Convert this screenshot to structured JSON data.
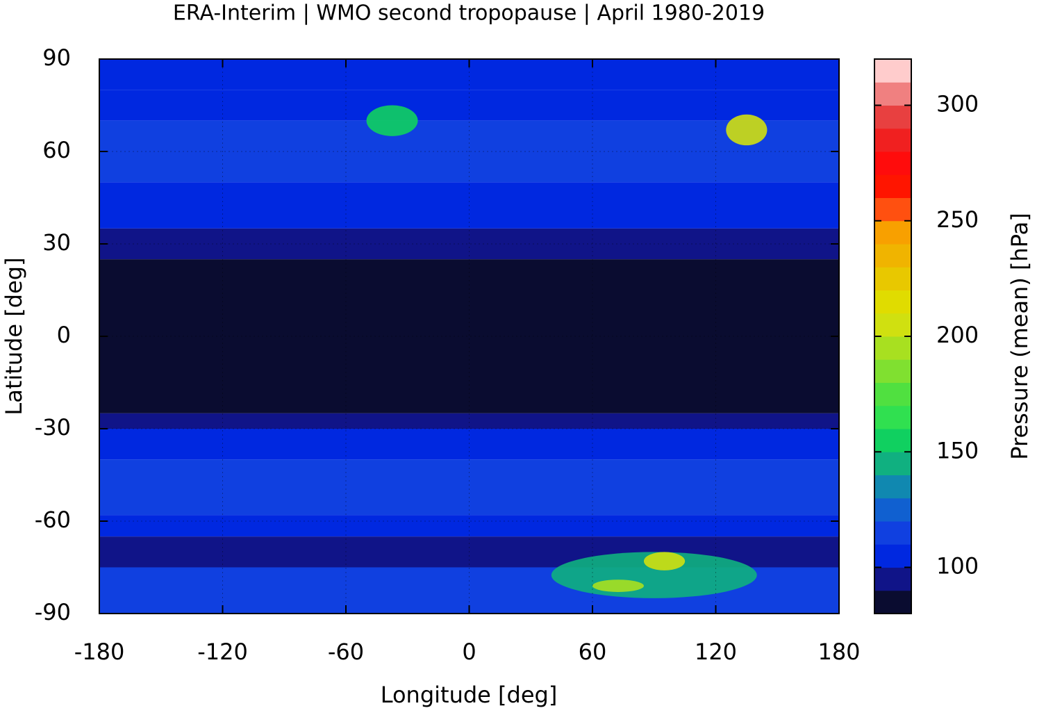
{
  "chart_data": {
    "type": "heatmap",
    "title": "ERA-Interim | WMO second tropopause | April 1980-2019",
    "x_label": "Longitude [deg]",
    "y_label": "Latitude [deg]",
    "xlim": [
      -180,
      180
    ],
    "xticks": [
      -180,
      -120,
      -60,
      0,
      60,
      120,
      180
    ],
    "ylim": [
      -90,
      90
    ],
    "yticks": [
      -90,
      -60,
      -30,
      0,
      30,
      60,
      90
    ],
    "grid": true,
    "zonal_bands": {
      "lat_edges": [
        90,
        80,
        70,
        50,
        35,
        25,
        -25,
        -30,
        -40,
        -58,
        -65,
        -75,
        -90
      ],
      "values": [
        105,
        100,
        110,
        100,
        92,
        85,
        92,
        105,
        112,
        105,
        95,
        115
      ]
    },
    "patches": [
      {
        "lon": [
          40,
          140
        ],
        "lat": [
          -85,
          -70
        ],
        "value": 140
      },
      {
        "lon": [
          85,
          105
        ],
        "lat": [
          -76,
          -70
        ],
        "value": 205
      },
      {
        "lon": [
          60,
          85
        ],
        "lat": [
          -83,
          -79
        ],
        "value": 195
      },
      {
        "lon": [
          125,
          145
        ],
        "lat": [
          62,
          72
        ],
        "value": 200
      },
      {
        "lon": [
          -50,
          -25
        ],
        "lat": [
          65,
          75
        ],
        "value": 150
      }
    ],
    "colorbar": {
      "label": "Pressure (mean) [hPa]",
      "lim": [
        80,
        320
      ],
      "ticks": [
        100,
        150,
        200,
        250,
        300
      ],
      "step": 10,
      "colors": [
        "#0a0c30",
        "#101488",
        "#0028e0",
        "#1040e0",
        "#1060d0",
        "#1088b0",
        "#10b080",
        "#10d060",
        "#30e050",
        "#50e040",
        "#80e030",
        "#a8e020",
        "#d0e010",
        "#e0dc00",
        "#e8c800",
        "#f0b400",
        "#f8a000",
        "#ff5010",
        "#ff1500",
        "#ff0c0c",
        "#f02020",
        "#e84040",
        "#f08080",
        "#ffcccc"
      ]
    }
  }
}
